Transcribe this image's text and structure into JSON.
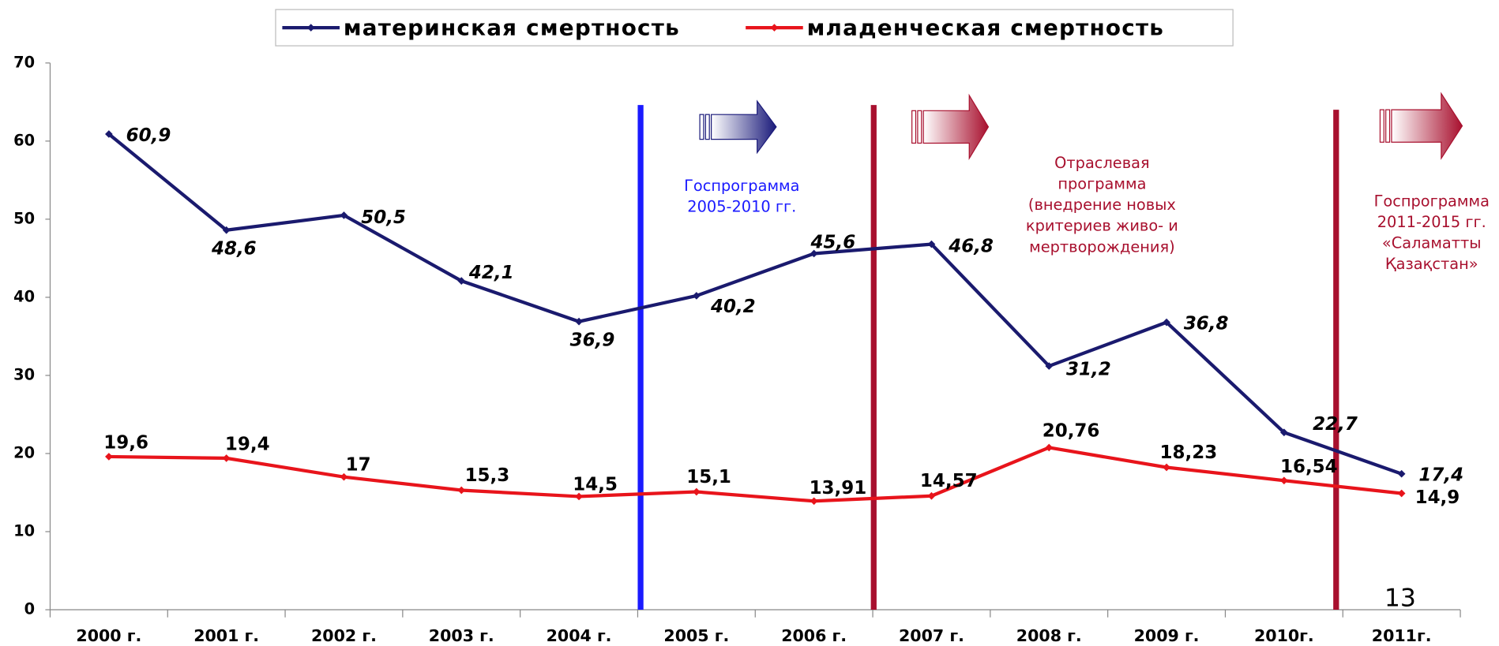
{
  "chart_data": {
    "type": "line",
    "categories": [
      "2000 г.",
      "2001 г.",
      "2002 г.",
      "2003 г.",
      "2004 г.",
      "2005 г.",
      "2006 г.",
      "2007 г.",
      "2008 г.",
      "2009 г.",
      "2010г.",
      "2011г."
    ],
    "series": [
      {
        "name": "материнская смертность",
        "color": "#1a1a6e",
        "values": [
          60.9,
          48.6,
          50.5,
          42.1,
          36.9,
          40.2,
          45.6,
          46.8,
          31.2,
          36.8,
          22.7,
          17.4
        ],
        "value_labels": [
          "60,9",
          "48,6",
          "50,5",
          "42,1",
          "36,9",
          "40,2",
          "45,6",
          "46,8",
          "31,2",
          "36,8",
          "22,7",
          "17,4"
        ]
      },
      {
        "name": "младенческая смертность",
        "color": "#e8141b",
        "values": [
          19.6,
          19.4,
          17,
          15.3,
          14.5,
          15.1,
          13.91,
          14.57,
          20.76,
          18.23,
          16.54,
          14.9
        ],
        "value_labels": [
          "19,6",
          "19,4",
          "17",
          "15,3",
          "14,5",
          "15,1",
          "13,91",
          "14,57",
          "20,76",
          "18,23",
          "16,54",
          "14,9"
        ]
      }
    ],
    "ylim": [
      0,
      70
    ],
    "yticks": [
      0,
      10,
      20,
      30,
      40,
      50,
      60,
      70
    ],
    "legend": "top",
    "annotations": [
      {
        "text": [
          "Госпрограмма",
          "2005-2010 гг."
        ],
        "color": "#1a1aff"
      },
      {
        "text": [
          "Отраслевая",
          "программа",
          "(внедрение новых",
          "критериев живо- и",
          "мертворождения)"
        ],
        "color": "#a8102e"
      },
      {
        "text": [
          "Госпрограмма",
          "2011-2015 гг.",
          "«Саламатты",
          "Қазақстан»"
        ],
        "color": "#a8102e"
      }
    ],
    "page_number": "13"
  }
}
